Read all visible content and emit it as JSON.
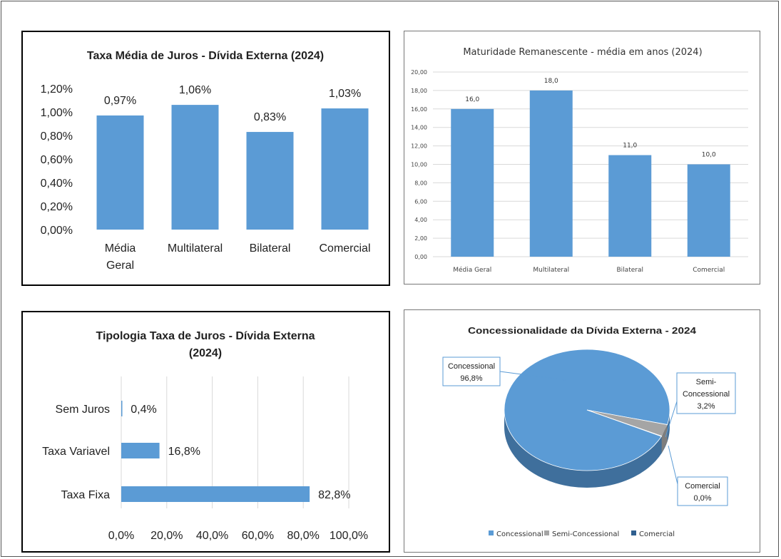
{
  "colors": {
    "bar": "#5b9bd5",
    "bar_dark": "#4a86c0",
    "grid": "#d9d9d9",
    "semi": "#a5a5a5",
    "comercial": "#2f5f8f"
  },
  "chart_data": [
    {
      "type": "bar",
      "title": "Taxa Média de Juros - Dívida Externa (2024)",
      "categories": [
        "Média Geral",
        "Multilateral",
        "Bilateral",
        "Comercial"
      ],
      "values": [
        0.97,
        1.06,
        0.83,
        1.03
      ],
      "data_labels": [
        "0,97%",
        "1,06%",
        "0,83%",
        "1,03%"
      ],
      "y_ticks": [
        "0,00%",
        "0,20%",
        "0,40%",
        "0,60%",
        "0,80%",
        "1,00%",
        "1,20%"
      ],
      "ylim": [
        0,
        1.2
      ],
      "grid": false
    },
    {
      "type": "bar",
      "title": "Maturidade Remanescente - média em anos (2024)",
      "categories": [
        "Média Geral",
        "Multilateral",
        "Bilateral",
        "Comercial"
      ],
      "values": [
        16,
        18,
        11,
        10
      ],
      "data_labels": [
        "16,0",
        "18,0",
        "11,0",
        "10,0"
      ],
      "y_ticks": [
        "0,00",
        "2,00",
        "4,00",
        "6,00",
        "8,00",
        "10,00",
        "12,00",
        "14,00",
        "16,00",
        "18,00",
        "20,00"
      ],
      "ylim": [
        0,
        20
      ],
      "grid": true
    },
    {
      "type": "bar",
      "orientation": "horizontal",
      "title_lines": [
        "Tipologia Taxa de Juros - Dívida Externa",
        "(2024)"
      ],
      "categories": [
        "Sem Juros",
        "Taxa Variavel",
        "Taxa Fixa"
      ],
      "values": [
        0.4,
        16.8,
        82.8
      ],
      "data_labels": [
        "0,4%",
        "16,8%",
        "82,8%"
      ],
      "x_ticks": [
        "0,0%",
        "20,0%",
        "40,0%",
        "60,0%",
        "80,0%",
        "100,0%"
      ],
      "xlim": [
        0,
        100
      ],
      "grid": true
    },
    {
      "type": "pie",
      "title": "Concessionalidade da Dívida Externa - 2024",
      "slices": [
        {
          "name": "Concessional",
          "value": 96.8,
          "label_lines": [
            "Concessional",
            "96,8%"
          ]
        },
        {
          "name": "Semi-Concessional",
          "value": 3.2,
          "label_lines": [
            "Semi-",
            "Concessional",
            "3,2%"
          ]
        },
        {
          "name": "Comercial",
          "value": 0.0,
          "label_lines": [
            "Comercial",
            "0,0%"
          ]
        }
      ],
      "legend": [
        "Concessional",
        "Semi-Concessional",
        "Comercial"
      ],
      "legend_position": "bottom"
    }
  ]
}
